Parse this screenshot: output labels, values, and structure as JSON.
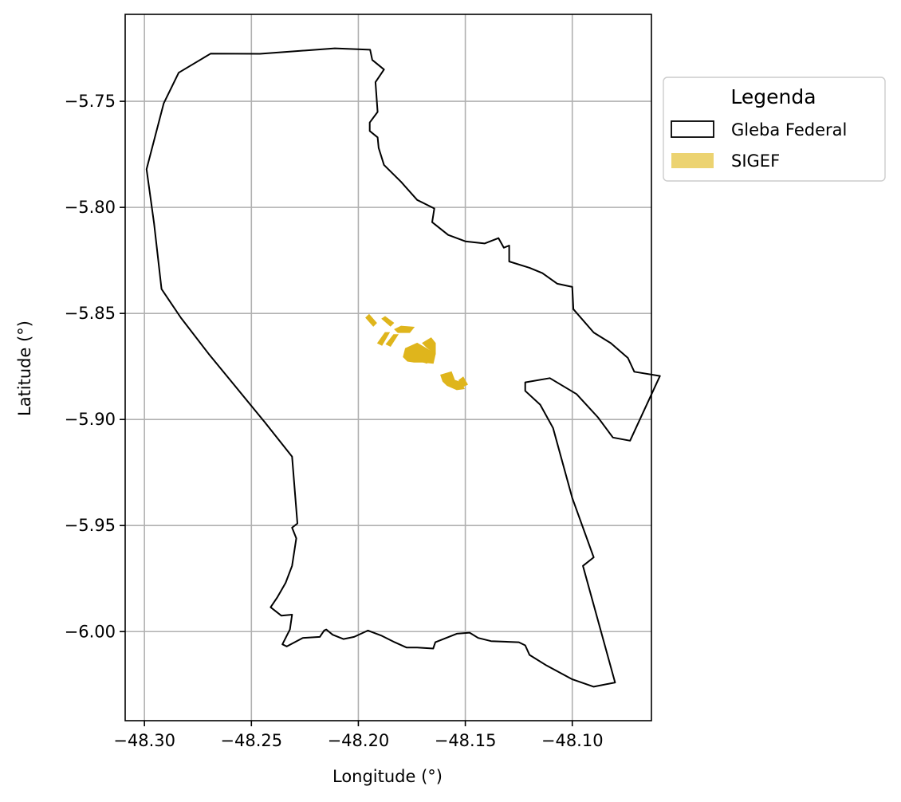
{
  "chart_data": {
    "type": "map",
    "xlabel": "Longitude (°)",
    "ylabel": "Latitude (°)",
    "xlim": [
      -48.309,
      -48.063
    ],
    "ylim": [
      -6.042,
      -5.709
    ],
    "grid": true,
    "x_ticks": [
      -48.3,
      -48.25,
      -48.2,
      -48.15,
      -48.1
    ],
    "x_tick_labels": [
      "−48.30",
      "−48.25",
      "−48.20",
      "−48.15",
      "−48.10"
    ],
    "y_ticks": [
      -5.75,
      -5.8,
      -5.85,
      -5.9,
      -5.95,
      -6.0
    ],
    "y_tick_labels": [
      "−5.75",
      "−5.80",
      "−5.85",
      "−5.90",
      "−5.95",
      "−6.00"
    ],
    "legend": {
      "title": "Legenda",
      "placement": "outside-top-right",
      "entries": [
        {
          "label": "Gleba Federal",
          "style": "outline",
          "edge": "#000000",
          "fill": "none"
        },
        {
          "label": "SIGEF",
          "style": "fill",
          "fill": "#ecd371"
        }
      ]
    },
    "layers": [
      {
        "name": "Gleba Federal",
        "edge": "#000000",
        "fill": "none",
        "polygon": [
          [
            -48.269,
            -5.7275
          ],
          [
            -48.246,
            -5.7276
          ],
          [
            -48.211,
            -5.725
          ],
          [
            -48.1945,
            -5.7257
          ],
          [
            -48.1935,
            -5.7305
          ],
          [
            -48.188,
            -5.735
          ],
          [
            -48.192,
            -5.741
          ],
          [
            -48.191,
            -5.755
          ],
          [
            -48.1947,
            -5.76
          ],
          [
            -48.1947,
            -5.764
          ],
          [
            -48.191,
            -5.767
          ],
          [
            -48.1905,
            -5.772
          ],
          [
            -48.188,
            -5.78
          ],
          [
            -48.18,
            -5.788
          ],
          [
            -48.1725,
            -5.7965
          ],
          [
            -48.1645,
            -5.8005
          ],
          [
            -48.1655,
            -5.807
          ],
          [
            -48.158,
            -5.813
          ],
          [
            -48.15,
            -5.816
          ],
          [
            -48.141,
            -5.817
          ],
          [
            -48.1345,
            -5.8145
          ],
          [
            -48.132,
            -5.819
          ],
          [
            -48.1295,
            -5.818
          ],
          [
            -48.1295,
            -5.8255
          ],
          [
            -48.12,
            -5.8285
          ],
          [
            -48.114,
            -5.831
          ],
          [
            -48.107,
            -5.836
          ],
          [
            -48.1,
            -5.8375
          ],
          [
            -48.0995,
            -5.848
          ],
          [
            -48.09,
            -5.859
          ],
          [
            -48.082,
            -5.864
          ],
          [
            -48.074,
            -5.871
          ],
          [
            -48.071,
            -5.8775
          ],
          [
            -48.059,
            -5.8795
          ],
          [
            -48.073,
            -5.91
          ],
          [
            -48.081,
            -5.9085
          ],
          [
            -48.088,
            -5.899
          ],
          [
            -48.098,
            -5.888
          ],
          [
            -48.1105,
            -5.8805
          ],
          [
            -48.122,
            -5.8825
          ],
          [
            -48.122,
            -5.8865
          ],
          [
            -48.115,
            -5.893
          ],
          [
            -48.109,
            -5.904
          ],
          [
            -48.1,
            -5.937
          ],
          [
            -48.09,
            -5.965
          ],
          [
            -48.095,
            -5.969
          ],
          [
            -48.08,
            -6.024
          ],
          [
            -48.09,
            -6.026
          ],
          [
            -48.1,
            -6.0225
          ],
          [
            -48.112,
            -6.016
          ],
          [
            -48.12,
            -6.011
          ],
          [
            -48.122,
            -6.0065
          ],
          [
            -48.125,
            -6.005
          ],
          [
            -48.138,
            -6.0045
          ],
          [
            -48.144,
            -6.003
          ],
          [
            -48.148,
            -6.0005
          ],
          [
            -48.154,
            -6.001
          ],
          [
            -48.1615,
            -6.004
          ],
          [
            -48.164,
            -6.005
          ],
          [
            -48.165,
            -6.008
          ],
          [
            -48.1725,
            -6.0075
          ],
          [
            -48.1775,
            -6.0075
          ],
          [
            -48.183,
            -6.005
          ],
          [
            -48.189,
            -6.002
          ],
          [
            -48.1955,
            -5.9995
          ],
          [
            -48.202,
            -6.0025
          ],
          [
            -48.207,
            -6.0035
          ],
          [
            -48.212,
            -6.0015
          ],
          [
            -48.215,
            -5.999
          ],
          [
            -48.216,
            -5.9995
          ],
          [
            -48.218,
            -6.0025
          ],
          [
            -48.226,
            -6.003
          ],
          [
            -48.2335,
            -6.007
          ],
          [
            -48.2355,
            -6.006
          ],
          [
            -48.232,
            -5.999
          ],
          [
            -48.231,
            -5.992
          ],
          [
            -48.236,
            -5.9925
          ],
          [
            -48.241,
            -5.9885
          ],
          [
            -48.238,
            -5.984
          ],
          [
            -48.234,
            -5.977
          ],
          [
            -48.231,
            -5.969
          ],
          [
            -48.229,
            -5.956
          ],
          [
            -48.231,
            -5.951
          ],
          [
            -48.2285,
            -5.949
          ],
          [
            -48.231,
            -5.9175
          ],
          [
            -48.244,
            -5.901
          ],
          [
            -48.257,
            -5.885
          ],
          [
            -48.27,
            -5.869
          ],
          [
            -48.283,
            -5.852
          ],
          [
            -48.292,
            -5.8385
          ],
          [
            -48.2955,
            -5.8075
          ],
          [
            -48.299,
            -5.782
          ],
          [
            -48.291,
            -5.751
          ],
          [
            -48.284,
            -5.7365
          ]
        ]
      },
      {
        "name": "SIGEF",
        "fill": "#dfb51c",
        "polygons": [
          [
            [
              -48.1965,
              -5.852
            ],
            [
              -48.195,
              -5.8505
            ],
            [
              -48.1915,
              -5.8545
            ],
            [
              -48.193,
              -5.856
            ]
          ],
          [
            [
              -48.189,
              -5.8525
            ],
            [
              -48.1875,
              -5.8515
            ],
            [
              -48.1835,
              -5.8545
            ],
            [
              -48.185,
              -5.856
            ]
          ],
          [
            [
              -48.183,
              -5.8575
            ],
            [
              -48.18,
              -5.856
            ],
            [
              -48.174,
              -5.8565
            ],
            [
              -48.176,
              -5.859
            ],
            [
              -48.1815,
              -5.859
            ]
          ],
          [
            [
              -48.1875,
              -5.859
            ],
            [
              -48.1855,
              -5.859
            ],
            [
              -48.189,
              -5.865
            ],
            [
              -48.191,
              -5.864
            ]
          ],
          [
            [
              -48.1835,
              -5.86
            ],
            [
              -48.1815,
              -5.86
            ],
            [
              -48.185,
              -5.8655
            ],
            [
              -48.187,
              -5.8645
            ]
          ],
          [
            [
              -48.166,
              -5.8615
            ],
            [
              -48.164,
              -5.864
            ],
            [
              -48.164,
              -5.869
            ],
            [
              -48.168,
              -5.866
            ],
            [
              -48.17,
              -5.864
            ]
          ],
          [
            [
              -48.178,
              -5.8665
            ],
            [
              -48.1725,
              -5.864
            ],
            [
              -48.164,
              -5.869
            ],
            [
              -48.165,
              -5.8735
            ],
            [
              -48.17,
              -5.873
            ],
            [
              -48.174,
              -5.873
            ],
            [
              -48.177,
              -5.8725
            ],
            [
              -48.179,
              -5.8705
            ]
          ],
          [
            [
              -48.169,
              -5.8695
            ],
            [
              -48.166,
              -5.87
            ],
            [
              -48.168,
              -5.8735
            ],
            [
              -48.171,
              -5.8725
            ]
          ],
          [
            [
              -48.1615,
              -5.879
            ],
            [
              -48.1565,
              -5.8775
            ],
            [
              -48.155,
              -5.8815
            ],
            [
              -48.152,
              -5.8825
            ],
            [
              -48.1505,
              -5.8855
            ],
            [
              -48.154,
              -5.886
            ],
            [
              -48.1585,
              -5.884
            ],
            [
              -48.1605,
              -5.882
            ]
          ],
          [
            [
              -48.153,
              -5.8815
            ],
            [
              -48.151,
              -5.88
            ],
            [
              -48.149,
              -5.8835
            ],
            [
              -48.151,
              -5.8845
            ]
          ]
        ]
      }
    ]
  }
}
